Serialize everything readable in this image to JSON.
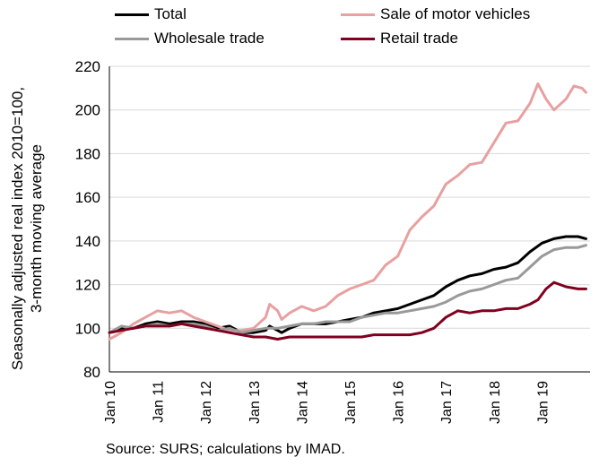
{
  "chart_data": {
    "type": "line",
    "title": "",
    "ylabel": "Seasonally adjusted real index 2010=100,\n3-month moving average",
    "xlabel": "",
    "ylim": [
      80,
      220
    ],
    "yticks": [
      "80",
      "100",
      "120",
      "140",
      "160",
      "180",
      "200",
      "220"
    ],
    "xticks": [
      "Jan 10",
      "Jan 11",
      "Jan 12",
      "Jan 13",
      "Jan 14",
      "Jan 15",
      "Jan 16",
      "Jan 17",
      "Jan 18",
      "Jan 19"
    ],
    "x_start": "2010-01",
    "x_end": "2019-12",
    "grid": "horizontal",
    "legend_position": "top",
    "source": "Source: SURS; calculations by IMAD.",
    "series": [
      {
        "name": "Total",
        "color": "#000000",
        "points": [
          [
            0,
            98
          ],
          [
            3,
            100
          ],
          [
            6,
            100
          ],
          [
            9,
            102
          ],
          [
            12,
            103
          ],
          [
            15,
            102
          ],
          [
            18,
            103
          ],
          [
            21,
            103
          ],
          [
            24,
            102
          ],
          [
            27,
            100
          ],
          [
            30,
            101
          ],
          [
            33,
            98
          ],
          [
            36,
            98
          ],
          [
            39,
            99
          ],
          [
            40,
            101
          ],
          [
            42,
            99
          ],
          [
            43,
            98
          ],
          [
            45,
            100
          ],
          [
            48,
            102
          ],
          [
            51,
            102
          ],
          [
            54,
            102
          ],
          [
            57,
            103
          ],
          [
            60,
            104
          ],
          [
            63,
            105
          ],
          [
            66,
            107
          ],
          [
            69,
            108
          ],
          [
            72,
            109
          ],
          [
            75,
            111
          ],
          [
            78,
            113
          ],
          [
            81,
            115
          ],
          [
            84,
            119
          ],
          [
            87,
            122
          ],
          [
            90,
            124
          ],
          [
            93,
            125
          ],
          [
            96,
            127
          ],
          [
            99,
            128
          ],
          [
            102,
            130
          ],
          [
            105,
            135
          ],
          [
            108,
            139
          ],
          [
            111,
            141
          ],
          [
            114,
            142
          ],
          [
            117,
            142
          ],
          [
            119,
            141
          ]
        ]
      },
      {
        "name": "Sale of motor vehicles",
        "color": "#E8A0A0",
        "points": [
          [
            0,
            95
          ],
          [
            3,
            98
          ],
          [
            6,
            102
          ],
          [
            9,
            105
          ],
          [
            12,
            108
          ],
          [
            15,
            107
          ],
          [
            18,
            108
          ],
          [
            21,
            105
          ],
          [
            24,
            103
          ],
          [
            27,
            101
          ],
          [
            30,
            99
          ],
          [
            33,
            99
          ],
          [
            36,
            100
          ],
          [
            39,
            105
          ],
          [
            40,
            111
          ],
          [
            42,
            108
          ],
          [
            43,
            104
          ],
          [
            45,
            107
          ],
          [
            48,
            110
          ],
          [
            51,
            108
          ],
          [
            54,
            110
          ],
          [
            57,
            115
          ],
          [
            60,
            118
          ],
          [
            63,
            120
          ],
          [
            66,
            122
          ],
          [
            69,
            129
          ],
          [
            72,
            133
          ],
          [
            75,
            145
          ],
          [
            78,
            151
          ],
          [
            81,
            156
          ],
          [
            84,
            166
          ],
          [
            87,
            170
          ],
          [
            90,
            175
          ],
          [
            93,
            176
          ],
          [
            96,
            185
          ],
          [
            99,
            194
          ],
          [
            102,
            195
          ],
          [
            105,
            203
          ],
          [
            107,
            212
          ],
          [
            109,
            205
          ],
          [
            111,
            200
          ],
          [
            114,
            205
          ],
          [
            116,
            211
          ],
          [
            118,
            210
          ],
          [
            119,
            208
          ]
        ]
      },
      {
        "name": "Wholesale trade",
        "color": "#999999",
        "points": [
          [
            0,
            98
          ],
          [
            3,
            101
          ],
          [
            6,
            100
          ],
          [
            9,
            101
          ],
          [
            12,
            102
          ],
          [
            15,
            101
          ],
          [
            18,
            102
          ],
          [
            21,
            102
          ],
          [
            24,
            101
          ],
          [
            27,
            99
          ],
          [
            30,
            100
          ],
          [
            33,
            98
          ],
          [
            36,
            99
          ],
          [
            39,
            100
          ],
          [
            42,
            100
          ],
          [
            45,
            101
          ],
          [
            48,
            102
          ],
          [
            51,
            102
          ],
          [
            54,
            103
          ],
          [
            57,
            103
          ],
          [
            60,
            103
          ],
          [
            63,
            105
          ],
          [
            66,
            106
          ],
          [
            69,
            107
          ],
          [
            72,
            107
          ],
          [
            75,
            108
          ],
          [
            78,
            109
          ],
          [
            81,
            110
          ],
          [
            84,
            112
          ],
          [
            87,
            115
          ],
          [
            90,
            117
          ],
          [
            93,
            118
          ],
          [
            96,
            120
          ],
          [
            99,
            122
          ],
          [
            102,
            123
          ],
          [
            105,
            128
          ],
          [
            108,
            133
          ],
          [
            111,
            136
          ],
          [
            114,
            137
          ],
          [
            117,
            137
          ],
          [
            119,
            138
          ]
        ]
      },
      {
        "name": "Retail trade",
        "color": "#800020",
        "points": [
          [
            0,
            98
          ],
          [
            3,
            99
          ],
          [
            6,
            100
          ],
          [
            9,
            101
          ],
          [
            12,
            101
          ],
          [
            15,
            101
          ],
          [
            18,
            102
          ],
          [
            21,
            101
          ],
          [
            24,
            100
          ],
          [
            27,
            99
          ],
          [
            30,
            98
          ],
          [
            33,
            97
          ],
          [
            36,
            96
          ],
          [
            39,
            96
          ],
          [
            42,
            95
          ],
          [
            45,
            96
          ],
          [
            48,
            96
          ],
          [
            51,
            96
          ],
          [
            54,
            96
          ],
          [
            57,
            96
          ],
          [
            60,
            96
          ],
          [
            63,
            96
          ],
          [
            66,
            97
          ],
          [
            69,
            97
          ],
          [
            72,
            97
          ],
          [
            75,
            97
          ],
          [
            78,
            98
          ],
          [
            81,
            100
          ],
          [
            84,
            105
          ],
          [
            87,
            108
          ],
          [
            90,
            107
          ],
          [
            93,
            108
          ],
          [
            96,
            108
          ],
          [
            99,
            109
          ],
          [
            102,
            109
          ],
          [
            105,
            111
          ],
          [
            107,
            113
          ],
          [
            109,
            118
          ],
          [
            111,
            121
          ],
          [
            114,
            119
          ],
          [
            117,
            118
          ],
          [
            119,
            118
          ]
        ]
      }
    ]
  }
}
